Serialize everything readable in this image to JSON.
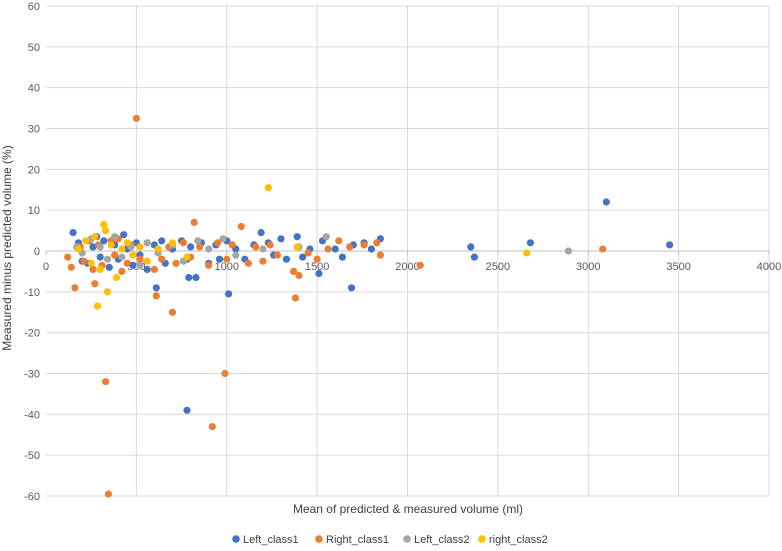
{
  "chart_data": {
    "type": "scatter",
    "xlabel": "Mean of predicted & measured volume (ml)",
    "ylabel": "Measured minus predicted volume (%)",
    "xlim": [
      0,
      4000
    ],
    "ylim": [
      -60,
      60
    ],
    "x_ticks": [
      0,
      500,
      1000,
      1500,
      2000,
      2500,
      3000,
      3500,
      4000
    ],
    "y_ticks": [
      60,
      50,
      40,
      30,
      20,
      10,
      0,
      -10,
      -20,
      -30,
      -40,
      -50,
      -60
    ],
    "grid": "on",
    "legend_position": "bottom",
    "series": [
      {
        "name": "Left_class1",
        "color": "#4472C4",
        "points": [
          [
            150,
            4.5
          ],
          [
            180,
            2.0
          ],
          [
            200,
            -2.5
          ],
          [
            230,
            -3.0
          ],
          [
            260,
            1.0
          ],
          [
            280,
            3.5
          ],
          [
            300,
            -1.5
          ],
          [
            320,
            2.5
          ],
          [
            350,
            -4.0
          ],
          [
            380,
            1.5
          ],
          [
            400,
            -2.0
          ],
          [
            430,
            4.0
          ],
          [
            450,
            0.5
          ],
          [
            480,
            -3.5
          ],
          [
            500,
            2.0
          ],
          [
            520,
            -1.0
          ],
          [
            560,
            -4.5
          ],
          [
            600,
            1.5
          ],
          [
            610,
            -9.0
          ],
          [
            640,
            2.5
          ],
          [
            660,
            -3.0
          ],
          [
            700,
            0.5
          ],
          [
            750,
            2.5
          ],
          [
            780,
            -2.0
          ],
          [
            790,
            -6.5
          ],
          [
            800,
            1.0
          ],
          [
            830,
            -6.5
          ],
          [
            860,
            2.0
          ],
          [
            900,
            -3.0
          ],
          [
            940,
            1.5
          ],
          [
            960,
            -2.0
          ],
          [
            1000,
            2.5
          ],
          [
            1010,
            -10.5
          ],
          [
            1050,
            0.5
          ],
          [
            1100,
            -2.0
          ],
          [
            1150,
            1.5
          ],
          [
            1190,
            4.5
          ],
          [
            1230,
            2.0
          ],
          [
            1260,
            -1.0
          ],
          [
            1300,
            3.0
          ],
          [
            1330,
            -2.0
          ],
          [
            1390,
            3.5
          ],
          [
            1420,
            -1.5
          ],
          [
            1460,
            0.5
          ],
          [
            1510,
            -5.5
          ],
          [
            1530,
            2.5
          ],
          [
            1600,
            0.5
          ],
          [
            1640,
            -1.5
          ],
          [
            1690,
            -9.0
          ],
          [
            1700,
            1.5
          ],
          [
            1760,
            2.0
          ],
          [
            1800,
            0.5
          ],
          [
            1850,
            3.0
          ],
          [
            2350,
            1.0
          ],
          [
            2370,
            -1.5
          ],
          [
            2680,
            2.0
          ],
          [
            3100,
            12.0
          ],
          [
            3450,
            1.5
          ],
          [
            780,
            -39.0
          ]
        ]
      },
      {
        "name": "Right_class1",
        "color": "#ED7D31",
        "points": [
          [
            120,
            -1.5
          ],
          [
            140,
            -4.0
          ],
          [
            160,
            -9.0
          ],
          [
            190,
            1.0
          ],
          [
            210,
            -2.5
          ],
          [
            240,
            2.5
          ],
          [
            260,
            -4.5
          ],
          [
            270,
            -8.0
          ],
          [
            290,
            1.5
          ],
          [
            310,
            -3.5
          ],
          [
            330,
            -32.0
          ],
          [
            345,
            -59.5
          ],
          [
            360,
            2.5
          ],
          [
            380,
            -1.0
          ],
          [
            400,
            3.0
          ],
          [
            420,
            -5.0
          ],
          [
            450,
            -3.0
          ],
          [
            470,
            1.5
          ],
          [
            500,
            32.5
          ],
          [
            520,
            -2.0
          ],
          [
            560,
            2.0
          ],
          [
            600,
            -4.5
          ],
          [
            610,
            -11.0
          ],
          [
            640,
            -2.0
          ],
          [
            680,
            1.0
          ],
          [
            700,
            -15.0
          ],
          [
            720,
            -3.0
          ],
          [
            760,
            2.0
          ],
          [
            800,
            -1.5
          ],
          [
            820,
            7.0
          ],
          [
            850,
            1.0
          ],
          [
            900,
            -3.5
          ],
          [
            920,
            -43.0
          ],
          [
            950,
            2.0
          ],
          [
            990,
            -30.0
          ],
          [
            1000,
            -2.0
          ],
          [
            1030,
            1.5
          ],
          [
            1080,
            6.0
          ],
          [
            1120,
            -3.0
          ],
          [
            1160,
            1.0
          ],
          [
            1200,
            -2.5
          ],
          [
            1240,
            1.5
          ],
          [
            1280,
            -1.0
          ],
          [
            1370,
            -5.0
          ],
          [
            1380,
            -11.5
          ],
          [
            1400,
            -6.0
          ],
          [
            1450,
            -0.5
          ],
          [
            1500,
            -2.0
          ],
          [
            1560,
            0.5
          ],
          [
            1620,
            2.5
          ],
          [
            1680,
            1.0
          ],
          [
            1760,
            1.5
          ],
          [
            1830,
            2.0
          ],
          [
            1850,
            -1.0
          ],
          [
            2070,
            -3.5
          ],
          [
            3080,
            0.5
          ]
        ]
      },
      {
        "name": "Left_class2",
        "color": "#A5A5A5",
        "points": [
          [
            170,
            1.0
          ],
          [
            200,
            -0.5
          ],
          [
            250,
            3.0
          ],
          [
            300,
            1.0
          ],
          [
            340,
            -2.0
          ],
          [
            380,
            3.5
          ],
          [
            420,
            -1.5
          ],
          [
            470,
            1.0
          ],
          [
            520,
            -3.5
          ],
          [
            560,
            2.0
          ],
          [
            620,
            -0.5
          ],
          [
            700,
            1.5
          ],
          [
            760,
            -2.5
          ],
          [
            840,
            2.5
          ],
          [
            900,
            0.5
          ],
          [
            980,
            3.0
          ],
          [
            1050,
            -1.0
          ],
          [
            1200,
            0.5
          ],
          [
            1400,
            1.0
          ],
          [
            1550,
            3.5
          ],
          [
            2890,
            0.0
          ]
        ]
      },
      {
        "name": "right_class2",
        "color": "#FFC000",
        "points": [
          [
            180,
            0.5
          ],
          [
            220,
            2.5
          ],
          [
            250,
            -3.0
          ],
          [
            270,
            3.5
          ],
          [
            285,
            -13.5
          ],
          [
            300,
            -4.5
          ],
          [
            320,
            6.5
          ],
          [
            330,
            5.0
          ],
          [
            340,
            -10.0
          ],
          [
            360,
            1.5
          ],
          [
            390,
            -6.5
          ],
          [
            420,
            0.5
          ],
          [
            450,
            2.0
          ],
          [
            480,
            -1.0
          ],
          [
            520,
            1.0
          ],
          [
            560,
            -2.5
          ],
          [
            620,
            0.5
          ],
          [
            700,
            2.0
          ],
          [
            780,
            -1.5
          ],
          [
            1230,
            15.5
          ],
          [
            1390,
            1.0
          ],
          [
            2660,
            -0.5
          ]
        ]
      }
    ]
  }
}
